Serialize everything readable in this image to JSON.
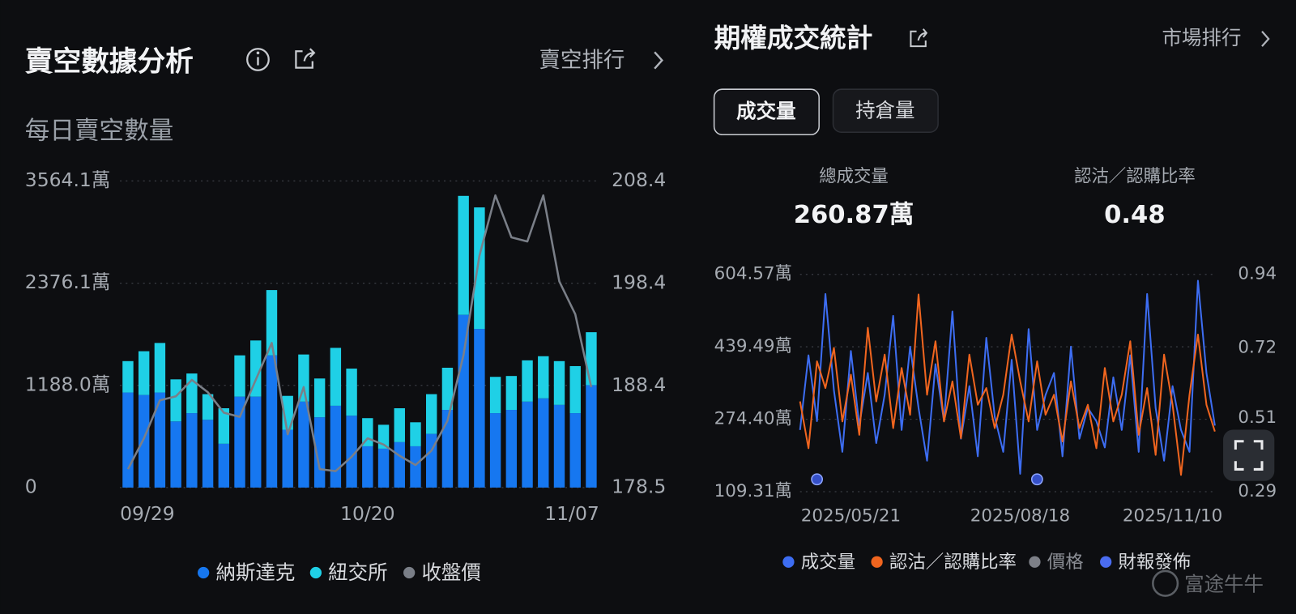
{
  "chart_data": [
    {
      "type": "bar",
      "title": "賣空數據分析",
      "subtitle": "每日賣空數量",
      "categories": [
        "09/29",
        null,
        null,
        null,
        null,
        null,
        null,
        null,
        null,
        null,
        null,
        null,
        null,
        null,
        null,
        "10/20",
        null,
        null,
        null,
        null,
        null,
        null,
        null,
        null,
        null,
        null,
        null,
        null,
        null,
        "11/07"
      ],
      "series": [
        {
          "name": "納斯達克",
          "color": "#1677f0",
          "values": [
            1105,
            1076,
            1105,
            769,
            865,
            788,
            509,
            1057,
            1057,
            1537,
            672,
            999,
            817,
            951,
            836,
            480,
            452,
            528,
            480,
            624,
            903,
            2008,
            1844,
            865,
            903,
            999,
            1037,
            961,
            865,
            1191
          ]
        },
        {
          "name": "紐交所",
          "color": "#1fd0e6",
          "values": [
            365,
            509,
            576,
            489,
            461,
            298,
            413,
            480,
            653,
            759,
            394,
            548,
            451,
            673,
            547,
            327,
            278,
            394,
            279,
            462,
            490,
            1383,
            1413,
            422,
            394,
            480,
            490,
            509,
            547,
            615
          ]
        },
        {
          "name": "收盤價",
          "color": "#7a7f88",
          "type": "line",
          "axis": "y2",
          "values": [
            180.3,
            183.3,
            187.0,
            187.4,
            189.0,
            187.8,
            185.8,
            185.4,
            189.0,
            192.6,
            183.7,
            188.3,
            180.3,
            180.1,
            181.5,
            183.3,
            182.7,
            181.6,
            180.7,
            182.1,
            185.0,
            191.4,
            201.1,
            207.0,
            202.9,
            202.5,
            207.0,
            198.6,
            195.4,
            188.3
          ]
        }
      ],
      "ylim": [
        0,
        3564.1
      ],
      "yticks": [
        0,
        {
          "value": 1188.0,
          "label": "1188.0萬"
        },
        {
          "value": 2376.1,
          "label": "2376.1萬"
        },
        {
          "value": 3564.1,
          "label": "3564.1萬"
        }
      ],
      "y2lim": [
        178.5,
        208.4
      ],
      "y2ticks": [
        178.5,
        188.4,
        198.4,
        208.4
      ],
      "grid": true
    },
    {
      "type": "line",
      "title": "期權成交統計",
      "categories": [
        null,
        null,
        null,
        null,
        null,
        null,
        "2025/05/21",
        null,
        null,
        null,
        null,
        null,
        null,
        null,
        null,
        null,
        null,
        null,
        null,
        null,
        null,
        null,
        null,
        null,
        null,
        null,
        "2025/08/18",
        null,
        null,
        null,
        null,
        null,
        null,
        null,
        null,
        null,
        null,
        null,
        null,
        null,
        null,
        null,
        null,
        null,
        "2025/11/10",
        null,
        null,
        null,
        null,
        null
      ],
      "series": [
        {
          "name": "成交量",
          "color": "#3d6df2",
          "type": "line",
          "values": [
            250,
            420,
            270,
            560,
            340,
            200,
            430,
            260,
            380,
            220,
            330,
            510,
            250,
            440,
            300,
            180,
            400,
            270,
            520,
            230,
            350,
            190,
            460,
            280,
            200,
            410,
            150,
            480,
            250,
            330,
            380,
            190,
            440,
            230,
            300,
            270,
            210,
            370,
            250,
            420,
            200,
            560,
            300,
            180,
            350,
            250,
            200,
            590,
            380,
            260
          ]
        },
        {
          "name": "認沽／認購比率",
          "color": "#f0651f",
          "type": "line",
          "axis": "y2",
          "values": [
            0.56,
            0.42,
            0.68,
            0.6,
            0.72,
            0.5,
            0.64,
            0.46,
            0.78,
            0.56,
            0.7,
            0.48,
            0.66,
            0.52,
            0.88,
            0.58,
            0.74,
            0.5,
            0.62,
            0.45,
            0.7,
            0.55,
            0.6,
            0.48,
            0.58,
            0.76,
            0.62,
            0.5,
            0.68,
            0.52,
            0.58,
            0.44,
            0.62,
            0.48,
            0.55,
            0.42,
            0.66,
            0.5,
            0.58,
            0.74,
            0.46,
            0.6,
            0.4,
            0.7,
            0.55,
            0.34,
            0.58,
            0.76,
            0.55,
            0.47
          ]
        },
        {
          "name": "價格",
          "color": "#8a8a8a",
          "type": "line",
          "hidden": true,
          "values": [
            null,
            null,
            null,
            null,
            null,
            null,
            null,
            null,
            null,
            null,
            null,
            null,
            null,
            null,
            null,
            null,
            null,
            null,
            null,
            null,
            null,
            null,
            null,
            null,
            null,
            null,
            null,
            null,
            null,
            null,
            null,
            null,
            null,
            null,
            null,
            null,
            null,
            null,
            null,
            null,
            null,
            null,
            null,
            null,
            null,
            null,
            null,
            null,
            null,
            null
          ]
        },
        {
          "name": "財報發佈",
          "color": "#4a6cf0",
          "type": "scatter",
          "values": [
            null,
            null,
            137.5,
            null,
            null,
            null,
            null,
            null,
            null,
            null,
            null,
            null,
            null,
            null,
            null,
            null,
            null,
            null,
            null,
            null,
            null,
            null,
            null,
            null,
            null,
            null,
            null,
            null,
            137.5,
            null,
            null,
            null,
            null,
            null,
            null,
            null,
            null,
            null,
            null,
            null,
            null,
            null,
            null,
            null,
            null,
            null,
            null,
            null,
            null,
            null
          ]
        }
      ],
      "ylim": [
        109.31,
        604.57
      ],
      "yticks": [
        {
          "value": 109.31,
          "label": "109.31萬"
        },
        {
          "value": 274.4,
          "label": "274.40萬"
        },
        {
          "value": 439.49,
          "label": "439.49萬"
        },
        {
          "value": 604.57,
          "label": "604.57萬"
        }
      ],
      "y2lim": [
        0.29,
        0.94
      ],
      "y2ticks": [
        0.29,
        0.51,
        0.72,
        0.94
      ],
      "grid": true
    }
  ],
  "ui": {
    "short_link": "賣空排行",
    "market_link": "市場排行",
    "tabs": [
      "成交量",
      "持倉量"
    ],
    "stats": [
      {
        "label": "總成交量",
        "value": "260.87萬"
      },
      {
        "label": "認沽／認購比率",
        "value": "0.48"
      }
    ],
    "watermark": "富途牛牛"
  }
}
